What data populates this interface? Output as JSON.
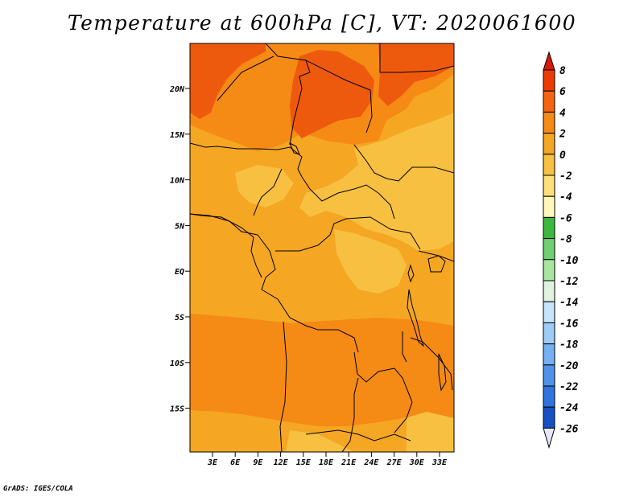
{
  "title": "Temperature at 600hPa [C], VT: 2020061600",
  "credit": "GrADS: IGES/COLA",
  "lat_labels": [
    "20N",
    "15N",
    "10N",
    "5N",
    "EQ",
    "5S",
    "10S",
    "15S"
  ],
  "lon_labels": [
    "3E",
    "6E",
    "9E",
    "12E",
    "15E",
    "18E",
    "21E",
    "24E",
    "27E",
    "30E",
    "33E"
  ],
  "colorbar": {
    "labels": [
      "8",
      "6",
      "4",
      "2",
      "0",
      "-2",
      "-4",
      "-6",
      "-8",
      "-10",
      "-12",
      "-14",
      "-16",
      "-18",
      "-20",
      "-22",
      "-24",
      "-26"
    ],
    "colors": [
      "#d91a00",
      "#ee3a05",
      "#f5640f",
      "#f58a15",
      "#f5a623",
      "#f7c040",
      "#fbe07a",
      "#fff8b8",
      "#3cb93c",
      "#6fd06f",
      "#a8e6a0",
      "#dff3e0",
      "#c6e4fa",
      "#9dcdf7",
      "#74b0f2",
      "#4f93ea",
      "#2f74df",
      "#1551c3",
      "#0b2d96",
      "#061a6e",
      "#e6e6fa"
    ],
    "top_arrow_color": "#d91a00",
    "bottom_arrow_color": "#e6e6fa"
  },
  "colors": {
    "base_field": "#f5a623",
    "warm_field": "#f58a15",
    "hot_field": "#ee5a0d",
    "cool_field": "#f7c040",
    "hottest": "#e8400a"
  }
}
